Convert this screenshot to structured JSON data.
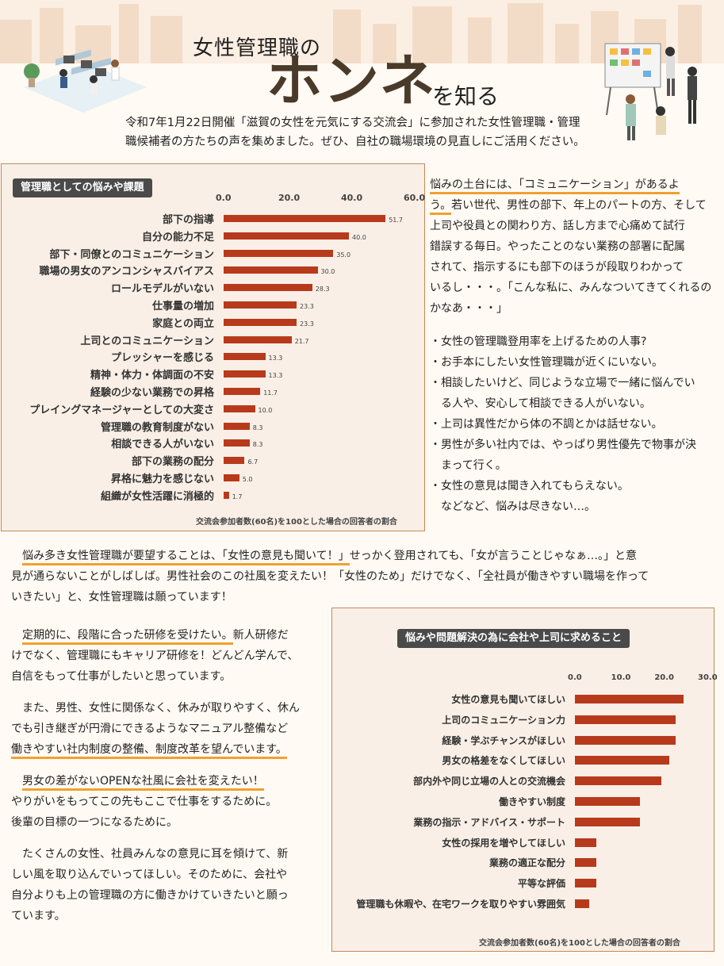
{
  "header": {
    "title_small": "女性管理職の",
    "title_big": "ホンネ",
    "title_suffix": "を知る",
    "intro_line1": "令和7年1月22日開催「滋賀の女性を元気にする交流会」に参加された女性管理職・管理",
    "intro_line2": "職候補者の方たちの声を集めました。ぜひ、自社の職場環境の見直しにご活用ください。"
  },
  "chart_data": [
    {
      "type": "bar",
      "orientation": "horizontal",
      "title": "管理職としての悩みや課題",
      "note": "交流会参加者数(60名)を100とした場合の回答者の割合",
      "ticks": [
        "0.0",
        "20.0",
        "40.0",
        "60.0"
      ],
      "xlim": [
        0,
        60
      ],
      "categories": [
        "部下の指導",
        "自分の能力不足",
        "部下・同僚とのコミュニケーション",
        "職場の男女のアンコンシャスバイアス",
        "ロールモデルがいない",
        "仕事量の増加",
        "家庭との両立",
        "上司とのコミュニケーション",
        "プレッシャーを感じる",
        "精神・体力・体調面の不安",
        "経験の少ない業務での昇格",
        "プレイングマネージャーとしての大変さ",
        "管理職の教育制度がない",
        "相談できる人がいない",
        "部下の業務の配分",
        "昇格に魅力を感じない",
        "組織が女性活躍に消極的"
      ],
      "values": [
        51.7,
        40.0,
        35.0,
        30.0,
        28.3,
        23.3,
        23.3,
        21.7,
        13.3,
        13.3,
        11.7,
        10.0,
        8.3,
        8.3,
        6.7,
        5.0,
        1.7
      ],
      "value_labels": [
        "51.7",
        "40.0",
        "35.0",
        "30.0",
        "28.3",
        "23.3",
        "23.3",
        "21.7",
        "13.3",
        "13.3",
        "11.7",
        "10.0",
        "8.3",
        "8.3",
        "6.7",
        "5.0",
        "1.7"
      ],
      "bar_color": "#b83a1c"
    },
    {
      "type": "bar",
      "orientation": "horizontal",
      "title": "悩みや問題解決の為に会社や上司に求めること",
      "note": "交流会参加者数(60名)を100とした場合の回答者の割合",
      "ticks": [
        "0.0",
        "10.0",
        "20.0",
        "30.0"
      ],
      "xlim": [
        0,
        30
      ],
      "categories": [
        "女性の意見も聞いてほしい",
        "上司のコミュニケーション力",
        "経験・学ぶチャンスがほしい",
        "男女の格差をなくしてほしい",
        "部内外や同じ立場の人との交流機会",
        "働きやすい制度",
        "業務の指示・アドバイス・サポート",
        "女性の採用を増やしてほしい",
        "業務の適正な配分",
        "平等な評価",
        "管理職も休暇や、在宅ワークを取りやすい雰囲気"
      ],
      "values": [
        25.0,
        23.3,
        23.3,
        21.7,
        20.0,
        15.0,
        15.0,
        5.0,
        5.0,
        5.0,
        3.3
      ],
      "bar_color": "#b83a1c"
    }
  ],
  "right_column": {
    "lead_highlight_1": "悩みの土台には、「コミュニケーション」があるよ",
    "lead_highlight_2": "う。",
    "lead_rest_1": "若い世代、男性の部下、年上のパートの方、そして",
    "lead_rest_2": "上司や役員との関わり方、話し方まで心痛めて試行",
    "lead_rest_3": "錯誤する毎日。やったことのない業務の部署に配属",
    "lead_rest_4": "されて、指示するにも部下のほうが段取りわかって",
    "lead_rest_5": "いるし・・・。「こんな私に、みんなついてきてくれるの",
    "lead_rest_6": "かなあ・・・」",
    "bullets": [
      "・女性の管理職登用率を上げるための人事?",
      "・お手本にしたい女性管理職が近くにいない。",
      "・相談したいけど、同じような立場で一緒に悩んでい",
      "　る人や、安心して相談できる人がいない。",
      "・上司は異性だから体の不調とかは話せない。",
      "・男性が多い社内では、やっぱり男性優先で物事が決",
      "　まって行く。",
      "・女性の意見は聞き入れてもらえない。",
      "　などなど、悩みは尽きない…。"
    ]
  },
  "middle": {
    "highlight": "悩み多き女性管理職が要望することは、「女性の意見も聞いて！」",
    "rest_1": "せっかく登用されても、「女が言うことじゃなぁ…。」と意",
    "line_2": "見が通らないことがしばしば。男性社会のこの社風を変えたい！「女性のため」だけでなく、「全社員が働きやすい職場を作って",
    "line_3": "いきたい」と、女性管理職は願っています！"
  },
  "bottom_left": {
    "p1_highlight": "定期的に、段階に合った研修を受けたい。",
    "p1_rest_1": "新人研修だ",
    "p1_line_2": "けでなく、管理職にもキャリア研修を！どんどん学んで、",
    "p1_line_3": "自信をもって仕事がしたいと思っています。",
    "p2_line_1": "　また、男性、女性に関係なく、休みが取りやすく、休ん",
    "p2_line_2": "でも引き継ぎが円滑にできるようなマニュアル整備など",
    "p2_highlight": "働きやすい社内制度の整備、制度改革を望んでいます。",
    "p3_highlight": "男女の差がないOPENな社風に会社を変えたい！",
    "p3_line_2": "やりがいをもってこの先もここで仕事をするために。",
    "p3_line_3": "後輩の目標の一つになるために。",
    "p4_line_1": "　たくさんの女性、社員みんなの意見に耳を傾けて、新",
    "p4_line_2": "しい風を取り込んでいってほしい。そのために、会社や",
    "p4_line_3": "自分よりも上の管理職の方に働きかけていきたいと願っ",
    "p4_line_4": "ています。"
  }
}
